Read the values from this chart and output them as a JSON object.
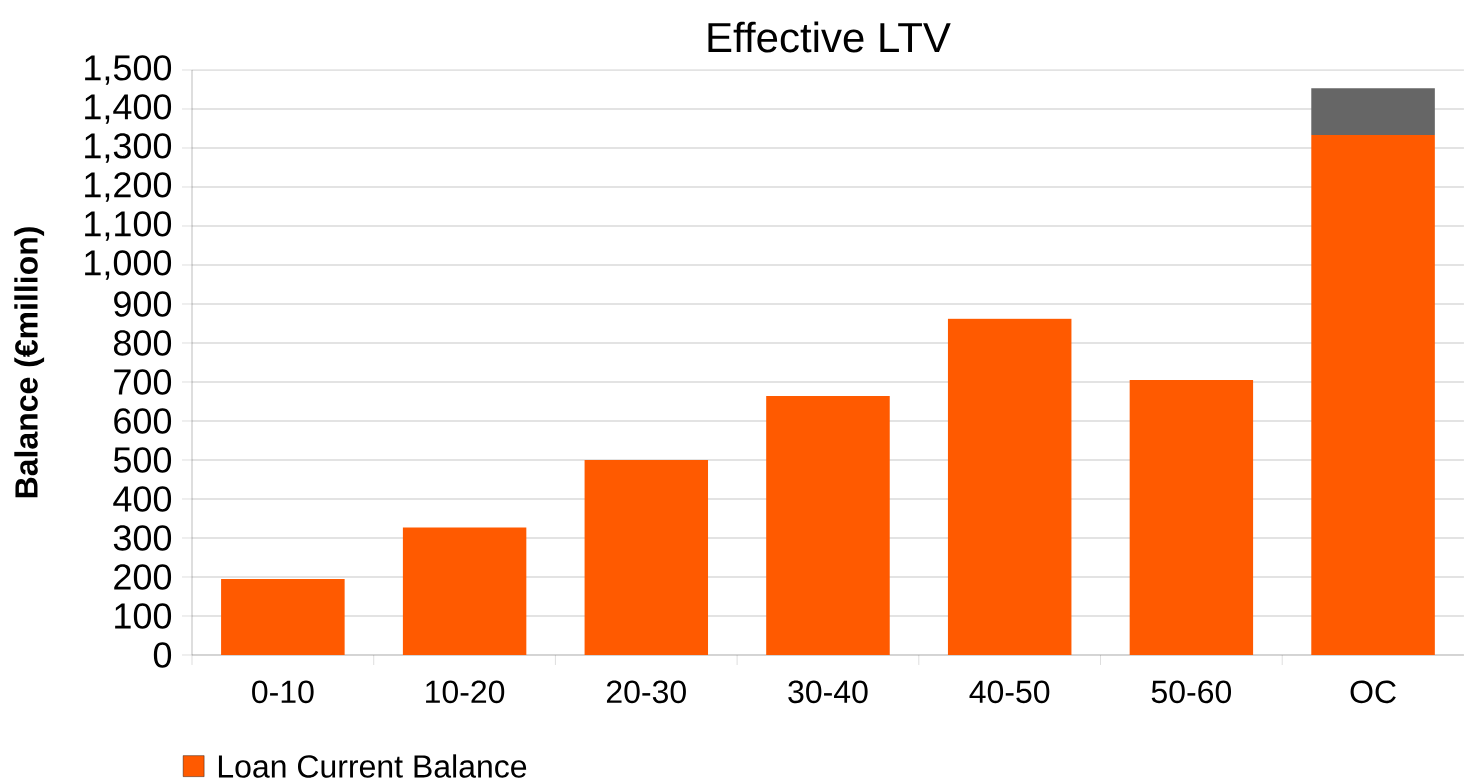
{
  "chart_data": {
    "type": "bar",
    "title": "Effective LTV",
    "ylabel": "Balance (€million)",
    "categories": [
      "0-10",
      "10-20",
      "20-30",
      "30-40",
      "40-50",
      "50-60",
      "OC"
    ],
    "series": [
      {
        "name": "Loan Current Balance",
        "color": "#ff5a00",
        "values": [
          195,
          327,
          500,
          664,
          862,
          705,
          1333
        ]
      },
      {
        "color": "#666666",
        "values": [
          null,
          null,
          null,
          null,
          null,
          null,
          120
        ]
      }
    ],
    "stacked": true,
    "ylim": [
      0,
      1500
    ],
    "yticks": [
      0,
      100,
      200,
      300,
      400,
      500,
      600,
      700,
      800,
      900,
      {
        "value": 1000,
        "label": "1,000"
      },
      {
        "value": 1100,
        "label": "1,100"
      },
      {
        "value": 1200,
        "label": "1,200"
      },
      {
        "value": 1300,
        "label": "1,300"
      },
      {
        "value": 1400,
        "label": "1,400"
      },
      {
        "value": 1500,
        "label": "1,500"
      }
    ],
    "grid": "y",
    "legend": "bottom left"
  }
}
